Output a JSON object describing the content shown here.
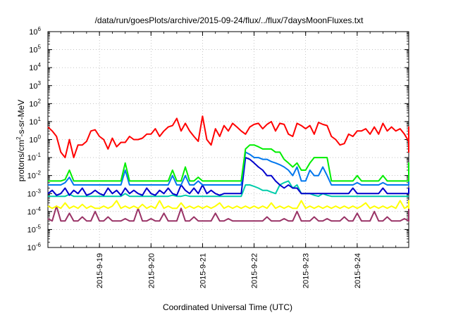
{
  "chart_data": {
    "type": "line",
    "title": "/data/run/goesPlots/archive/2015-09-24/flux/../flux/7daysMoonFluxes.txt",
    "xlabel": "Coordinated Universal Time (UTC)",
    "ylabel_parts": [
      "protons/cm",
      "2",
      "-s-sr-MeV"
    ],
    "yscale": "log",
    "ylim": [
      1e-06,
      1000000.0
    ],
    "yticks": [
      {
        "base": "10",
        "exp": "-6"
      },
      {
        "base": "10",
        "exp": "-5"
      },
      {
        "base": "10",
        "exp": "-4"
      },
      {
        "base": "10",
        "exp": "-3"
      },
      {
        "base": "10",
        "exp": "-2"
      },
      {
        "base": "10",
        "exp": "-1"
      },
      {
        "base": "10",
        "exp": "0"
      },
      {
        "base": "10",
        "exp": "1"
      },
      {
        "base": "10",
        "exp": "2"
      },
      {
        "base": "10",
        "exp": "3"
      },
      {
        "base": "10",
        "exp": "4"
      },
      {
        "base": "10",
        "exp": "5"
      },
      {
        "base": "10",
        "exp": "6"
      }
    ],
    "xlim": [
      "2015-09-18 00:00",
      "2015-09-25 00:00"
    ],
    "xticks": [
      "2015-9-19",
      "2015-9-20",
      "2015-9-21",
      "2015-9-22",
      "2015-9-23",
      "2015-9-24"
    ],
    "grid": true,
    "series": [
      {
        "color": "#ff0000",
        "x_start": "2015-09-18 00:00",
        "step_hours": 2,
        "values": [
          5,
          3,
          1.5,
          0.2,
          0.1,
          1,
          0.1,
          0.5,
          0.5,
          0.8,
          3,
          3.5,
          1.5,
          1,
          0.3,
          1.2,
          0.4,
          0.7,
          0.7,
          1.5,
          1,
          1,
          1.2,
          2,
          2,
          4,
          1.5,
          3,
          5,
          6,
          15,
          3,
          8,
          3,
          1.5,
          0.8,
          20,
          1,
          0.5,
          4,
          1.5,
          6,
          3,
          8,
          5,
          3,
          2,
          5,
          7,
          8,
          4,
          7,
          10,
          3,
          8,
          7,
          2,
          1.5,
          8,
          6,
          4,
          6,
          2,
          9,
          7,
          6,
          1.5,
          1,
          0.5,
          0.6,
          2,
          1.5,
          3,
          3,
          4,
          2,
          5,
          2,
          8,
          3,
          5,
          3,
          4,
          2,
          0.8,
          2,
          0.5,
          1,
          0.3,
          0.2,
          0.8,
          1,
          3,
          5,
          4,
          2,
          0.7,
          1,
          0.3,
          0.4,
          0.6,
          0.5,
          0.6,
          1,
          2.5,
          3,
          3,
          4,
          4,
          5,
          5,
          5,
          5,
          4,
          5
        ]
      },
      {
        "color": "#00ee00",
        "x_start": "2015-09-18 00:00",
        "step_hours": 2,
        "values": [
          0.005,
          0.005,
          0.005,
          0.005,
          0.006,
          0.02,
          0.005,
          0.005,
          0.005,
          0.005,
          0.005,
          0.005,
          0.005,
          0.005,
          0.005,
          0.005,
          0.005,
          0.005,
          0.05,
          0.005,
          0.005,
          0.005,
          0.005,
          0.005,
          0.005,
          0.005,
          0.005,
          0.005,
          0.005,
          0.02,
          0.005,
          0.005,
          0.03,
          0.005,
          0.005,
          0.008,
          0.005,
          0.005,
          0.005,
          0.005,
          0.005,
          0.005,
          0.005,
          0.005,
          0.005,
          0.005,
          0.3,
          0.5,
          0.5,
          0.4,
          0.3,
          0.3,
          0.3,
          0.2,
          0.2,
          0.08,
          0.05,
          0.03,
          0.05,
          0.02,
          0.02,
          0.05,
          0.1,
          0.1,
          0.1,
          0.1,
          0.005,
          0.005,
          0.005,
          0.005,
          0.005,
          0.005,
          0.01,
          0.005,
          0.005,
          0.005,
          0.005,
          0.005,
          0.01,
          0.005,
          0.005,
          0.005,
          0.005,
          0.005,
          0.005,
          0.005,
          0.005,
          0.005,
          0.005,
          0.05,
          0.006,
          0.005,
          0.005,
          0.005,
          0.02,
          0.005,
          0.005,
          0.005,
          0.005,
          0.005,
          0.005,
          0.005,
          0.005,
          0.005,
          0.005,
          0.005,
          0.008,
          0.005,
          0.005,
          0.005,
          0.005,
          0.005,
          0.005,
          0.005,
          0.005
        ]
      },
      {
        "color": "#0077ee",
        "x_start": "2015-09-18 00:00",
        "step_hours": 2,
        "values": [
          0.003,
          0.003,
          0.003,
          0.003,
          0.004,
          0.008,
          0.003,
          0.003,
          0.003,
          0.003,
          0.003,
          0.003,
          0.003,
          0.003,
          0.003,
          0.003,
          0.003,
          0.003,
          0.02,
          0.003,
          0.003,
          0.003,
          0.003,
          0.003,
          0.003,
          0.003,
          0.003,
          0.003,
          0.003,
          0.01,
          0.003,
          0.003,
          0.01,
          0.003,
          0.003,
          0.005,
          0.003,
          0.003,
          0.003,
          0.003,
          0.003,
          0.003,
          0.003,
          0.003,
          0.003,
          0.003,
          0.2,
          0.15,
          0.1,
          0.1,
          0.08,
          0.08,
          0.06,
          0.05,
          0.04,
          0.03,
          0.02,
          0.01,
          0.03,
          0.005,
          0.005,
          0.02,
          0.01,
          0.01,
          0.03,
          0.01,
          0.003,
          0.003,
          0.003,
          0.003,
          0.003,
          0.003,
          0.004,
          0.003,
          0.003,
          0.003,
          0.003,
          0.003,
          0.004,
          0.003,
          0.003,
          0.003,
          0.003,
          0.003,
          0.003,
          0.003,
          0.003,
          0.003,
          0.003,
          0.004,
          0.003,
          0.003,
          0.003,
          0.003,
          0.005,
          0.003,
          0.003,
          0.003,
          0.003,
          0.003,
          0.003,
          0.003,
          0.003,
          0.003,
          0.003,
          0.003,
          0.005,
          0.003,
          0.003,
          0.003,
          0.003,
          0.003,
          0.003,
          0.003,
          0.003
        ]
      },
      {
        "color": "#0000cc",
        "x_start": "2015-09-18 00:00",
        "step_hours": 2,
        "values": [
          0.001,
          0.0015,
          0.0008,
          0.001,
          0.002,
          0.0008,
          0.0015,
          0.001,
          0.002,
          0.0008,
          0.001,
          0.0015,
          0.001,
          0.0008,
          0.002,
          0.001,
          0.0015,
          0.0008,
          0.002,
          0.001,
          0.0015,
          0.001,
          0.0008,
          0.002,
          0.001,
          0.0008,
          0.0015,
          0.001,
          0.002,
          0.001,
          0.0008,
          0.003,
          0.0015,
          0.001,
          0.002,
          0.001,
          0.003,
          0.001,
          0.0015,
          0.001,
          0.0008,
          0.001,
          0.001,
          0.001,
          0.001,
          0.001,
          0.1,
          0.08,
          0.05,
          0.03,
          0.02,
          0.01,
          0.01,
          0.005,
          0.003,
          0.002,
          0.003,
          0.002,
          0.002,
          0.001,
          0.001,
          0.001,
          0.001,
          0.001,
          0.001,
          0.001,
          0.001,
          0.001,
          0.001,
          0.001,
          0.001,
          0.002,
          0.001,
          0.001,
          0.001,
          0.001,
          0.001,
          0.001,
          0.002,
          0.001,
          0.001,
          0.001,
          0.001,
          0.001,
          0.001,
          0.001,
          0.001,
          0.001,
          0.001,
          0.001,
          0.001,
          0.001,
          0.001,
          0.001,
          0.002,
          0.001,
          0.001,
          0.001,
          0.001,
          0.001,
          0.001,
          0.001,
          0.001,
          0.001,
          0.001,
          0.001,
          0.001,
          0.001,
          0.001,
          0.001,
          0.001,
          0.001,
          0.0015,
          0.001,
          0.001
        ]
      },
      {
        "color": "#00ccaa",
        "x_start": "2015-09-18 00:00",
        "step_hours": 2,
        "values": [
          0.0007,
          0.0007,
          0.0007,
          0.0007,
          0.0007,
          0.0009,
          0.0007,
          0.0007,
          0.0007,
          0.0007,
          0.0007,
          0.0007,
          0.0007,
          0.0007,
          0.0007,
          0.0007,
          0.0007,
          0.0007,
          0.001,
          0.0007,
          0.0007,
          0.0007,
          0.0007,
          0.0007,
          0.0007,
          0.0007,
          0.0007,
          0.0007,
          0.0007,
          0.0008,
          0.0007,
          0.0007,
          0.0008,
          0.0007,
          0.0007,
          0.0007,
          0.0007,
          0.0007,
          0.0007,
          0.0007,
          0.0007,
          0.0007,
          0.0007,
          0.0007,
          0.0007,
          0.0007,
          0.003,
          0.003,
          0.0025,
          0.002,
          0.0015,
          0.0015,
          0.0012,
          0.001,
          0.003,
          0.004,
          0.005,
          0.002,
          0.003,
          0.001,
          0.001,
          0.001,
          0.0008,
          0.0007,
          0.001,
          0.0008,
          0.0007,
          0.0007,
          0.0007,
          0.0007,
          0.0007,
          0.0007,
          0.0007,
          0.0007,
          0.0007,
          0.0007,
          0.0007,
          0.0007,
          0.0007,
          0.0007,
          0.0007,
          0.0007,
          0.0007,
          0.0007,
          0.0007,
          0.0007,
          0.0007,
          0.0007,
          0.0007,
          0.0007,
          0.0007,
          0.0007,
          0.0007,
          0.0007,
          0.0007,
          0.0007,
          0.0007,
          0.0007,
          0.0007,
          0.0007,
          0.0007,
          0.0007,
          0.0007,
          0.0007,
          0.0007,
          0.0007,
          0.0007,
          0.0007,
          0.0007,
          0.0007,
          0.0007,
          0.0007,
          0.0007,
          0.0007,
          0.0007
        ]
      },
      {
        "color": "#ffff00",
        "x_start": "2015-09-18 00:00",
        "step_hours": 2,
        "values": [
          0.0002,
          0.00015,
          0.0002,
          0.00015,
          0.0003,
          0.00015,
          0.0002,
          0.00015,
          0.00025,
          0.00015,
          0.0002,
          0.00015,
          0.00015,
          0.0002,
          0.00015,
          0.0002,
          0.0004,
          0.00015,
          0.0002,
          0.00015,
          0.0002,
          0.00015,
          0.00025,
          0.00015,
          0.0002,
          0.00015,
          0.0004,
          0.00015,
          0.0002,
          0.00015,
          0.00015,
          0.0003,
          0.00015,
          0.0002,
          0.00015,
          0.0002,
          0.00015,
          0.0002,
          0.00015,
          0.0002,
          0.0003,
          0.00015,
          0.0002,
          0.00015,
          0.0002,
          0.00015,
          0.0002,
          0.00015,
          0.0002,
          0.00015,
          0.0002,
          0.00015,
          0.0003,
          0.00015,
          0.0002,
          0.00015,
          0.0002,
          0.00015,
          0.00015,
          0.0004,
          0.00015,
          0.0002,
          0.00015,
          0.0002,
          0.00015,
          0.0002,
          0.00015,
          0.0002,
          0.00015,
          0.0002,
          0.00015,
          0.0002,
          0.00015,
          0.0002,
          0.0003,
          0.00015,
          0.0002,
          0.00015,
          0.0002,
          0.00015,
          0.0002,
          0.00015,
          0.0004,
          0.00015,
          0.0002,
          0.00015,
          0.0002,
          0.00015,
          0.0002,
          0.00015,
          0.00025,
          0.00015,
          0.0002,
          0.00015,
          0.0002,
          0.00015,
          0.0002,
          0.00015,
          0.0003,
          0.00015,
          0.0002,
          0.00015,
          0.0002,
          0.0004,
          0.00015,
          0.0002,
          0.00015,
          0.0002,
          0.00015,
          0.0002,
          0.00015,
          0.0002,
          0.00015,
          0.0004,
          0.00015
        ]
      },
      {
        "color": "#993366",
        "x_start": "2015-09-18 00:00",
        "step_hours": 2,
        "values": [
          4e-05,
          3e-05,
          0.0002,
          3e-05,
          3e-05,
          8e-05,
          3e-05,
          3e-05,
          5e-05,
          3e-05,
          3e-05,
          0.0001,
          3e-05,
          3e-05,
          5e-05,
          3e-05,
          3e-05,
          3e-05,
          4e-05,
          3e-05,
          3e-05,
          0.00015,
          3e-05,
          3e-05,
          4e-05,
          3e-05,
          3e-05,
          8e-05,
          3e-05,
          3e-05,
          3e-05,
          0.00015,
          3e-05,
          3e-05,
          5e-05,
          3e-05,
          3e-05,
          3e-05,
          3e-05,
          8e-05,
          3e-05,
          3e-05,
          4e-05,
          3e-05,
          3e-05,
          3e-05,
          3e-05,
          3e-05,
          3e-05,
          3e-05,
          3e-05,
          5e-05,
          3e-05,
          3e-05,
          3e-05,
          4e-05,
          3e-05,
          3e-05,
          0.0001,
          3e-05,
          3e-05,
          3e-05,
          5e-05,
          3e-05,
          3e-05,
          4e-05,
          3e-05,
          3e-05,
          3e-05,
          5e-05,
          3e-05,
          3e-05,
          8e-05,
          3e-05,
          3e-05,
          3e-05,
          0.0001,
          3e-05,
          3e-05,
          5e-05,
          3e-05,
          3e-05,
          3e-05,
          4e-05,
          3e-05,
          3e-05,
          8e-05,
          3e-05,
          3e-05,
          3e-05,
          5e-05,
          3e-05,
          3e-05,
          3e-05,
          0.00015,
          3e-05,
          3e-05,
          3e-05,
          3e-05,
          4e-05,
          3e-05,
          3e-05,
          3e-05,
          3e-05,
          3e-05,
          0.0001,
          3e-05,
          3e-05,
          3e-05,
          4e-05,
          3e-05,
          3e-05,
          0.0002,
          3e-05,
          3e-05
        ]
      }
    ]
  }
}
